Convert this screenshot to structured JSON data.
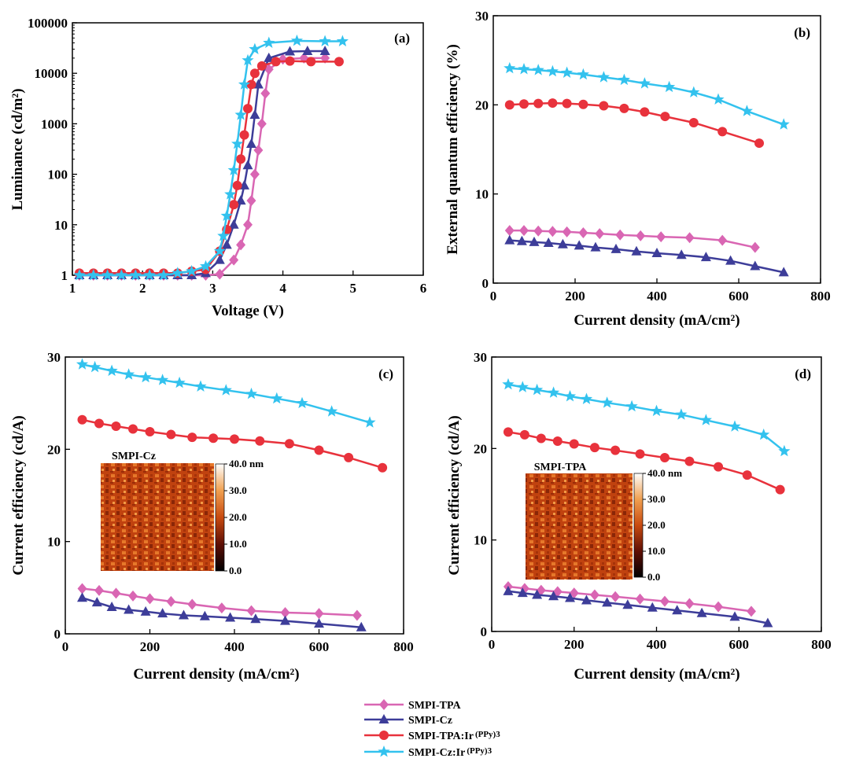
{
  "legend": [
    {
      "label": "SMPI-TPA",
      "color": "#d966b3",
      "marker": "diamond"
    },
    {
      "label": "SMPI-Cz",
      "color": "#3d3d99",
      "marker": "triangle"
    },
    {
      "label": "SMPI-TPA:Ir",
      "sub": "(PPy)3",
      "color": "#e8323c",
      "marker": "circle"
    },
    {
      "label": "SMPI-Cz:Ir",
      "sub": "(PPy)3",
      "color": "#33c2ee",
      "marker": "star"
    }
  ],
  "chart_data": [
    {
      "type": "line",
      "panel_label": "(a)",
      "xlabel": "Voltage (V)",
      "ylabel": "Luminance (cd/m²)",
      "xlim": [
        1,
        6
      ],
      "ylim": [
        1,
        100000
      ],
      "yscale": "log",
      "xticks": [
        1,
        2,
        3,
        4,
        5,
        6
      ],
      "yticks": [
        1,
        10,
        100,
        1000,
        10000,
        100000
      ],
      "series": [
        {
          "name": "SMPI-TPA",
          "x": [
            1.1,
            1.3,
            1.5,
            1.7,
            1.9,
            2.1,
            2.3,
            2.5,
            2.7,
            2.9,
            3.1,
            3.3,
            3.4,
            3.5,
            3.55,
            3.6,
            3.65,
            3.7,
            3.75,
            3.8,
            4.0,
            4.3,
            4.6
          ],
          "y": [
            1,
            1,
            1,
            1,
            1,
            1,
            1,
            1,
            1,
            1,
            1.05,
            2,
            4,
            10,
            30,
            100,
            300,
            1000,
            4000,
            12000,
            19000,
            20000,
            20000
          ]
        },
        {
          "name": "SMPI-Cz",
          "x": [
            1.1,
            1.3,
            1.5,
            1.7,
            1.9,
            2.1,
            2.3,
            2.5,
            2.7,
            2.9,
            3.1,
            3.2,
            3.3,
            3.4,
            3.45,
            3.5,
            3.55,
            3.6,
            3.65,
            3.8,
            4.1,
            4.35,
            4.6
          ],
          "y": [
            1,
            1,
            1,
            1,
            1,
            1,
            1,
            1,
            1,
            1.1,
            2,
            4,
            10,
            30,
            60,
            150,
            400,
            1500,
            6000,
            20000,
            27000,
            27500,
            27500
          ]
        },
        {
          "name": "SMPI-TPA:Ir(PPy)3",
          "x": [
            1.1,
            1.3,
            1.5,
            1.7,
            1.9,
            2.1,
            2.3,
            2.5,
            2.7,
            2.9,
            3.1,
            3.2,
            3.3,
            3.35,
            3.4,
            3.45,
            3.5,
            3.55,
            3.6,
            3.7,
            3.9,
            4.1,
            4.4,
            4.8
          ],
          "y": [
            1.1,
            1.1,
            1.1,
            1.1,
            1.1,
            1.1,
            1.1,
            1.1,
            1.2,
            1.3,
            3,
            8,
            25,
            60,
            200,
            600,
            2000,
            6000,
            10000,
            14000,
            17000,
            17500,
            17000,
            17000
          ]
        },
        {
          "name": "SMPI-Cz:Ir(PPy)3",
          "x": [
            1.1,
            1.3,
            1.5,
            1.7,
            1.9,
            2.1,
            2.3,
            2.5,
            2.7,
            2.9,
            3.1,
            3.15,
            3.2,
            3.25,
            3.3,
            3.35,
            3.4,
            3.45,
            3.5,
            3.6,
            3.8,
            4.2,
            4.6,
            4.85
          ],
          "y": [
            1,
            1,
            1,
            1,
            1,
            1,
            1,
            1.1,
            1.2,
            1.5,
            3,
            6,
            15,
            40,
            120,
            400,
            1500,
            6000,
            18000,
            30000,
            40000,
            44000,
            43000,
            43000
          ]
        }
      ]
    },
    {
      "type": "line",
      "panel_label": "(b)",
      "xlabel": "Current density (mA/cm²)",
      "ylabel": "External quantum efficiency (%)",
      "xlim": [
        0,
        800
      ],
      "ylim": [
        0,
        30
      ],
      "xticks": [
        0,
        200,
        400,
        600,
        800
      ],
      "yticks": [
        0,
        10,
        20,
        30
      ],
      "series": [
        {
          "name": "SMPI-TPA",
          "x": [
            40,
            75,
            110,
            145,
            180,
            220,
            260,
            310,
            360,
            410,
            480,
            560,
            640
          ],
          "y": [
            5.9,
            5.9,
            5.85,
            5.8,
            5.75,
            5.65,
            5.55,
            5.4,
            5.3,
            5.2,
            5.1,
            4.8,
            4.0
          ]
        },
        {
          "name": "SMPI-Cz",
          "x": [
            40,
            70,
            100,
            135,
            170,
            210,
            250,
            300,
            350,
            400,
            460,
            520,
            580,
            640,
            710
          ],
          "y": [
            4.8,
            4.7,
            4.6,
            4.5,
            4.35,
            4.2,
            4.0,
            3.8,
            3.55,
            3.35,
            3.15,
            2.9,
            2.5,
            1.9,
            1.2
          ]
        },
        {
          "name": "SMPI-TPA:Ir(PPy)3",
          "x": [
            40,
            75,
            110,
            145,
            180,
            220,
            270,
            320,
            370,
            420,
            490,
            560,
            650
          ],
          "y": [
            20.0,
            20.1,
            20.15,
            20.2,
            20.15,
            20.05,
            19.9,
            19.6,
            19.2,
            18.7,
            18.0,
            17.0,
            15.7
          ]
        },
        {
          "name": "SMPI-Cz:Ir(PPy)3",
          "x": [
            40,
            75,
            110,
            145,
            180,
            220,
            270,
            320,
            370,
            430,
            490,
            550,
            620,
            710
          ],
          "y": [
            24.1,
            24.0,
            23.9,
            23.75,
            23.6,
            23.4,
            23.1,
            22.8,
            22.4,
            22.0,
            21.4,
            20.6,
            19.3,
            17.8
          ]
        }
      ]
    },
    {
      "type": "line",
      "panel_label": "(c)",
      "xlabel": "Current density (mA/cm²)",
      "ylabel": "Current efficiency (cd/A)",
      "xlim": [
        0,
        800
      ],
      "ylim": [
        0,
        30
      ],
      "xticks": [
        0,
        200,
        400,
        600,
        800
      ],
      "yticks": [
        0,
        10,
        20,
        30
      ],
      "inset": {
        "title": "SMPI-Cz",
        "colorbar_ticks": [
          "40.0 nm",
          "30.0",
          "20.0",
          "10.0",
          "0.0"
        ]
      },
      "series": [
        {
          "name": "SMPI-TPA",
          "x": [
            40,
            80,
            120,
            160,
            200,
            250,
            300,
            370,
            440,
            520,
            600,
            690
          ],
          "y": [
            4.9,
            4.7,
            4.4,
            4.1,
            3.8,
            3.5,
            3.2,
            2.8,
            2.5,
            2.3,
            2.2,
            2.0
          ]
        },
        {
          "name": "SMPI-Cz",
          "x": [
            40,
            75,
            110,
            150,
            190,
            230,
            280,
            330,
            390,
            450,
            520,
            600,
            700
          ],
          "y": [
            3.9,
            3.4,
            2.9,
            2.6,
            2.4,
            2.2,
            2.0,
            1.9,
            1.75,
            1.6,
            1.4,
            1.1,
            0.7
          ]
        },
        {
          "name": "SMPI-TPA:Ir(PPy)3",
          "x": [
            40,
            80,
            120,
            160,
            200,
            250,
            300,
            350,
            400,
            460,
            530,
            600,
            670,
            750
          ],
          "y": [
            23.2,
            22.8,
            22.5,
            22.2,
            21.9,
            21.6,
            21.3,
            21.2,
            21.1,
            20.9,
            20.6,
            19.9,
            19.1,
            18.0
          ]
        },
        {
          "name": "SMPI-Cz:Ir(PPy)3",
          "x": [
            40,
            70,
            110,
            150,
            190,
            230,
            270,
            320,
            380,
            440,
            500,
            560,
            630,
            720
          ],
          "y": [
            29.2,
            28.9,
            28.5,
            28.1,
            27.8,
            27.5,
            27.2,
            26.8,
            26.4,
            26.0,
            25.5,
            25.0,
            24.1,
            22.9
          ]
        }
      ]
    },
    {
      "type": "line",
      "panel_label": "(d)",
      "xlabel": "Current density (mA/cm²)",
      "ylabel": "Current efficiency (cd/A)",
      "xlim": [
        0,
        800
      ],
      "ylim": [
        0,
        30
      ],
      "xticks": [
        0,
        200,
        400,
        600,
        800
      ],
      "yticks": [
        0,
        10,
        20,
        30
      ],
      "inset": {
        "title": "SMPI-TPA",
        "colorbar_ticks": [
          "40.0 nm",
          "30.0",
          "20.0",
          "10.0",
          "0.0"
        ]
      },
      "series": [
        {
          "name": "SMPI-TPA",
          "x": [
            40,
            80,
            120,
            160,
            200,
            250,
            300,
            360,
            420,
            480,
            550,
            630
          ],
          "y": [
            4.9,
            4.7,
            4.5,
            4.35,
            4.2,
            4.0,
            3.8,
            3.55,
            3.3,
            3.05,
            2.7,
            2.2
          ]
        },
        {
          "name": "SMPI-Cz",
          "x": [
            40,
            75,
            110,
            150,
            190,
            230,
            280,
            330,
            390,
            450,
            510,
            590,
            670
          ],
          "y": [
            4.4,
            4.2,
            4.0,
            3.85,
            3.65,
            3.4,
            3.15,
            2.9,
            2.6,
            2.3,
            2.0,
            1.6,
            0.9
          ]
        },
        {
          "name": "SMPI-TPA:Ir(PPy)3",
          "x": [
            40,
            80,
            120,
            160,
            200,
            250,
            300,
            360,
            420,
            480,
            550,
            620,
            700
          ],
          "y": [
            21.8,
            21.5,
            21.1,
            20.8,
            20.5,
            20.1,
            19.8,
            19.4,
            19.0,
            18.6,
            18.0,
            17.1,
            15.5
          ]
        },
        {
          "name": "SMPI-Cz:Ir(PPy)3",
          "x": [
            40,
            75,
            110,
            150,
            190,
            230,
            280,
            340,
            400,
            460,
            520,
            590,
            660,
            710
          ],
          "y": [
            27.0,
            26.7,
            26.4,
            26.1,
            25.7,
            25.4,
            25.0,
            24.6,
            24.1,
            23.7,
            23.1,
            22.4,
            21.5,
            19.7
          ]
        }
      ]
    }
  ]
}
